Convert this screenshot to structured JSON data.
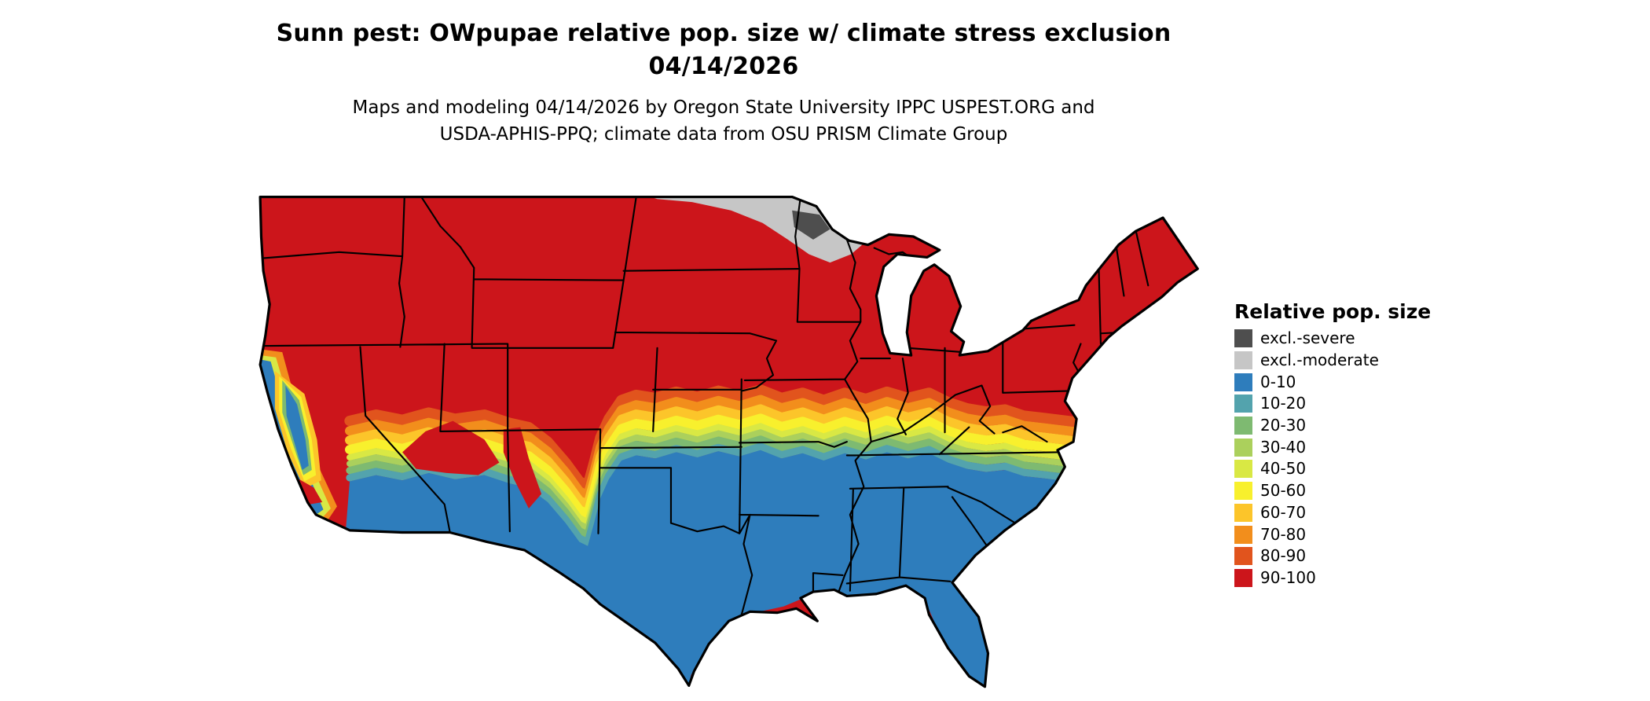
{
  "title": {
    "line1": "Sunn pest: OWpupae relative pop. size w/ climate stress exclusion",
    "line2": "04/14/2026"
  },
  "subtitle": {
    "line1": "Maps and modeling 04/14/2026 by Oregon State University IPPC USPEST.ORG and",
    "line2": "USDA-APHIS-PPQ; climate data from OSU PRISM Climate Group"
  },
  "legend": {
    "title": "Relative pop. size",
    "entries": [
      {
        "label": "excl.-severe",
        "color": "#4e4e4e"
      },
      {
        "label": "excl.-moderate",
        "color": "#c6c6c6"
      },
      {
        "label": "0-10",
        "color": "#2e7dbc"
      },
      {
        "label": "10-20",
        "color": "#53a3ad"
      },
      {
        "label": "20-30",
        "color": "#7eba71"
      },
      {
        "label": "30-40",
        "color": "#abd05c"
      },
      {
        "label": "40-50",
        "color": "#d9e844"
      },
      {
        "label": "50-60",
        "color": "#f8f02d"
      },
      {
        "label": "60-70",
        "color": "#fcc52a"
      },
      {
        "label": "70-80",
        "color": "#f28e1c"
      },
      {
        "label": "80-90",
        "color": "#e1541d"
      },
      {
        "label": "90-100",
        "color": "#cc151b"
      }
    ]
  },
  "palette": {
    "high_90_100": "#cc151b",
    "band_80_90": "#e1541d",
    "band_70_80": "#f28e1c",
    "band_60_70": "#fcc52a",
    "band_50_60": "#f8f02d",
    "band_40_50": "#d9e844",
    "band_30_40": "#abd05c",
    "band_20_30": "#7eba71",
    "band_10_20": "#53a3ad",
    "low_0_10": "#2e7dbc",
    "excl_moderate": "#c6c6c6",
    "excl_severe": "#4e4e4e",
    "state_border": "#000000",
    "background": "#ffffff"
  }
}
